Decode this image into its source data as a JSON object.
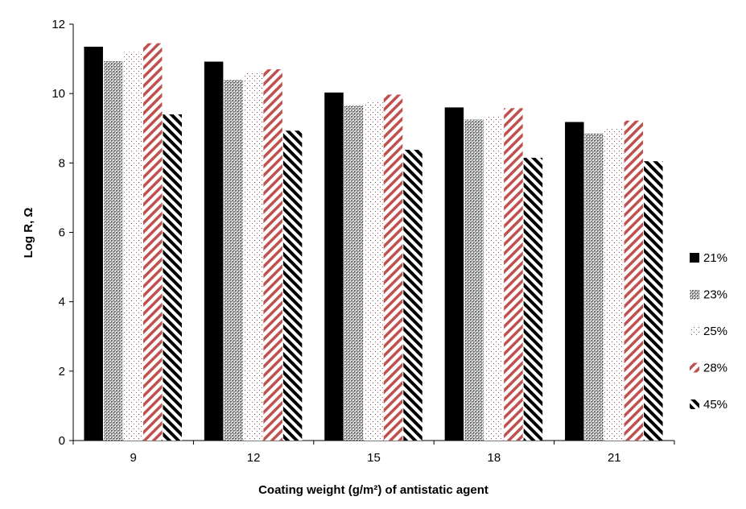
{
  "chart_data": {
    "type": "bar",
    "title": "",
    "xlabel": "Coating weight (g/m²) of antistatic agent",
    "ylabel": "Log R, Ω",
    "categories": [
      "9",
      "12",
      "15",
      "18",
      "21"
    ],
    "ylim": [
      0,
      12
    ],
    "yticks": [
      "0",
      "2",
      "4",
      "6",
      "8",
      "10",
      "12"
    ],
    "grid": false,
    "legend_position": "right",
    "series": [
      {
        "name": "21%",
        "values": [
          11.35,
          10.92,
          10.03,
          9.6,
          9.18
        ],
        "color": "#000000",
        "pattern": "solid"
      },
      {
        "name": "23%",
        "values": [
          10.93,
          10.4,
          9.66,
          9.25,
          8.85
        ],
        "color": "#3a3a3a",
        "pattern": "crosshatch-dense"
      },
      {
        "name": "25%",
        "values": [
          11.2,
          10.6,
          9.75,
          9.38,
          9.0
        ],
        "color": "#7a4040",
        "pattern": "dots-sparse"
      },
      {
        "name": "28%",
        "values": [
          11.45,
          10.7,
          9.97,
          9.58,
          9.22
        ],
        "color": "#c0504d",
        "pattern": "diagonal-red"
      },
      {
        "name": "45%",
        "values": [
          9.4,
          8.93,
          8.38,
          8.15,
          8.05
        ],
        "color": "#000000",
        "pattern": "diagonal-black"
      }
    ]
  }
}
